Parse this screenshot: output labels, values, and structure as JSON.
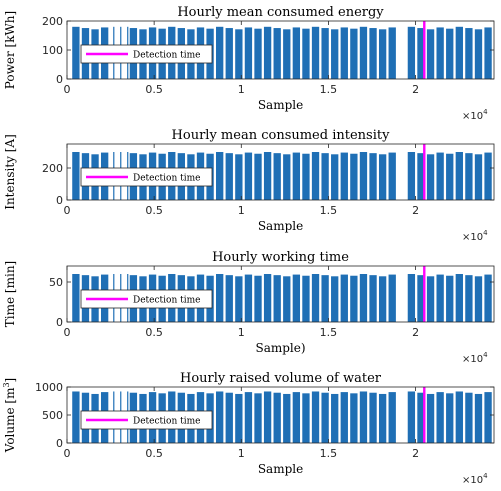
{
  "chart_data": [
    {
      "type": "bar",
      "title": "Hourly mean consumed energy",
      "xlabel": "Sample",
      "ylabel": "Power [kWh]",
      "xlim": [
        0,
        24500
      ],
      "ylim": [
        0,
        200
      ],
      "xticks": [
        0,
        5000,
        10000,
        15000,
        20000
      ],
      "xtick_labels": [
        "0",
        "0.5",
        "1",
        "1.5",
        "2"
      ],
      "x_multiplier": "×10",
      "x_multiplier_exp": "4",
      "yticks": [
        0,
        100,
        200
      ],
      "ytick_labels": [
        "0",
        "100",
        "200"
      ],
      "typical_value": 180,
      "detection_time": 20500,
      "legend": "Detection time",
      "legend_position": "west",
      "grid": false
    },
    {
      "type": "bar",
      "title": "Hourly mean consumed intensity",
      "xlabel": "Sample",
      "ylabel": "Intensity [A]",
      "xlim": [
        0,
        24500
      ],
      "ylim": [
        0,
        350
      ],
      "xticks": [
        0,
        5000,
        10000,
        15000,
        20000
      ],
      "xtick_labels": [
        "0",
        "0.5",
        "1",
        "1.5",
        "2"
      ],
      "x_multiplier": "×10",
      "x_multiplier_exp": "4",
      "yticks": [
        0,
        200
      ],
      "ytick_labels": [
        "0",
        "200"
      ],
      "typical_value": 300,
      "detection_time": 20500,
      "legend": "Detection time",
      "legend_position": "west",
      "grid": false
    },
    {
      "type": "bar",
      "title": "Hourly working time",
      "xlabel": "Sample)",
      "ylabel": "Time [min]",
      "xlim": [
        0,
        24500
      ],
      "ylim": [
        0,
        70
      ],
      "xticks": [
        0,
        5000,
        10000,
        15000,
        20000
      ],
      "xtick_labels": [
        "0",
        "0.5",
        "1",
        "1.5",
        "2"
      ],
      "x_multiplier": "×10",
      "x_multiplier_exp": "4",
      "yticks": [
        0,
        50
      ],
      "ytick_labels": [
        "0",
        "50"
      ],
      "typical_value": 60,
      "detection_time": 20500,
      "legend": "Detection time",
      "legend_position": "west",
      "grid": false
    },
    {
      "type": "bar",
      "title": "Hourly raised volume of water",
      "xlabel": "Sample",
      "ylabel": "Volume [m",
      "ylabel_sup": "3",
      "ylabel_end": "]",
      "xlim": [
        0,
        24500
      ],
      "ylim": [
        0,
        1000
      ],
      "xticks": [
        0,
        5000,
        10000,
        15000,
        20000
      ],
      "xtick_labels": [
        "0",
        "0.5",
        "1",
        "1.5",
        "2"
      ],
      "x_multiplier": "×10",
      "x_multiplier_exp": "4",
      "yticks": [
        0,
        500,
        1000
      ],
      "ytick_labels": [
        "0",
        "500",
        "1000"
      ],
      "typical_value": 920,
      "detection_time": 20500,
      "legend": "Detection time",
      "legend_position": "west",
      "grid": false
    }
  ],
  "colors": {
    "bars": "#1f6fb5",
    "detection_line": "#ff00ff",
    "axis": "#262626"
  }
}
